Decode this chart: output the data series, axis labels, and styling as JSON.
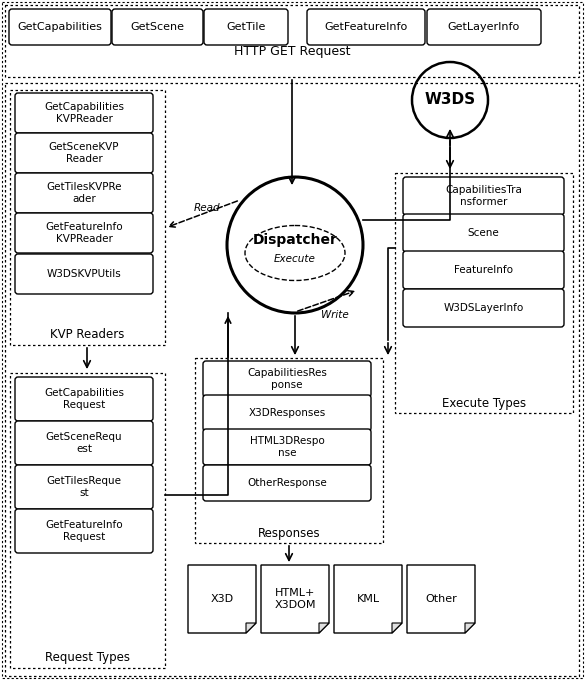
{
  "bg_color": "#ffffff",
  "http_boxes": [
    "GetCapabilities",
    "GetScene",
    "GetTile",
    "GetFeatureInfo",
    "GetLayerInfo"
  ],
  "http_label": "HTTP GET Request",
  "kvp_readers": [
    "GetCapabilities\nKVPReader",
    "GetSceneKVP\nReader",
    "GetTilesKVPRe\nader",
    "GetFeatureInfo\nKVPReader",
    "W3DSKVPUtils"
  ],
  "kvp_label": "KVP Readers",
  "request_types": [
    "GetCapabilities\nRequest",
    "GetSceneRequ\nest",
    "GetTilesReque\nst",
    "GetFeatureInfo\nRequest"
  ],
  "request_label": "Request Types",
  "responses": [
    "CapabilitiesRes\nponse",
    "X3DResponses",
    "HTML3DRespo\nnse",
    "OtherResponse"
  ],
  "response_label": "Responses",
  "execute_types": [
    "CapabilitiesTra\nnsformer",
    "Scene",
    "FeatureInfo",
    "W3DSLayerInfo"
  ],
  "execute_label": "Execute Types",
  "output_boxes": [
    "X3D",
    "HTML+\nX3DOM",
    "KML",
    "Other"
  ],
  "dispatcher_label": "Dispatcher",
  "w3ds_label": "W3DS"
}
